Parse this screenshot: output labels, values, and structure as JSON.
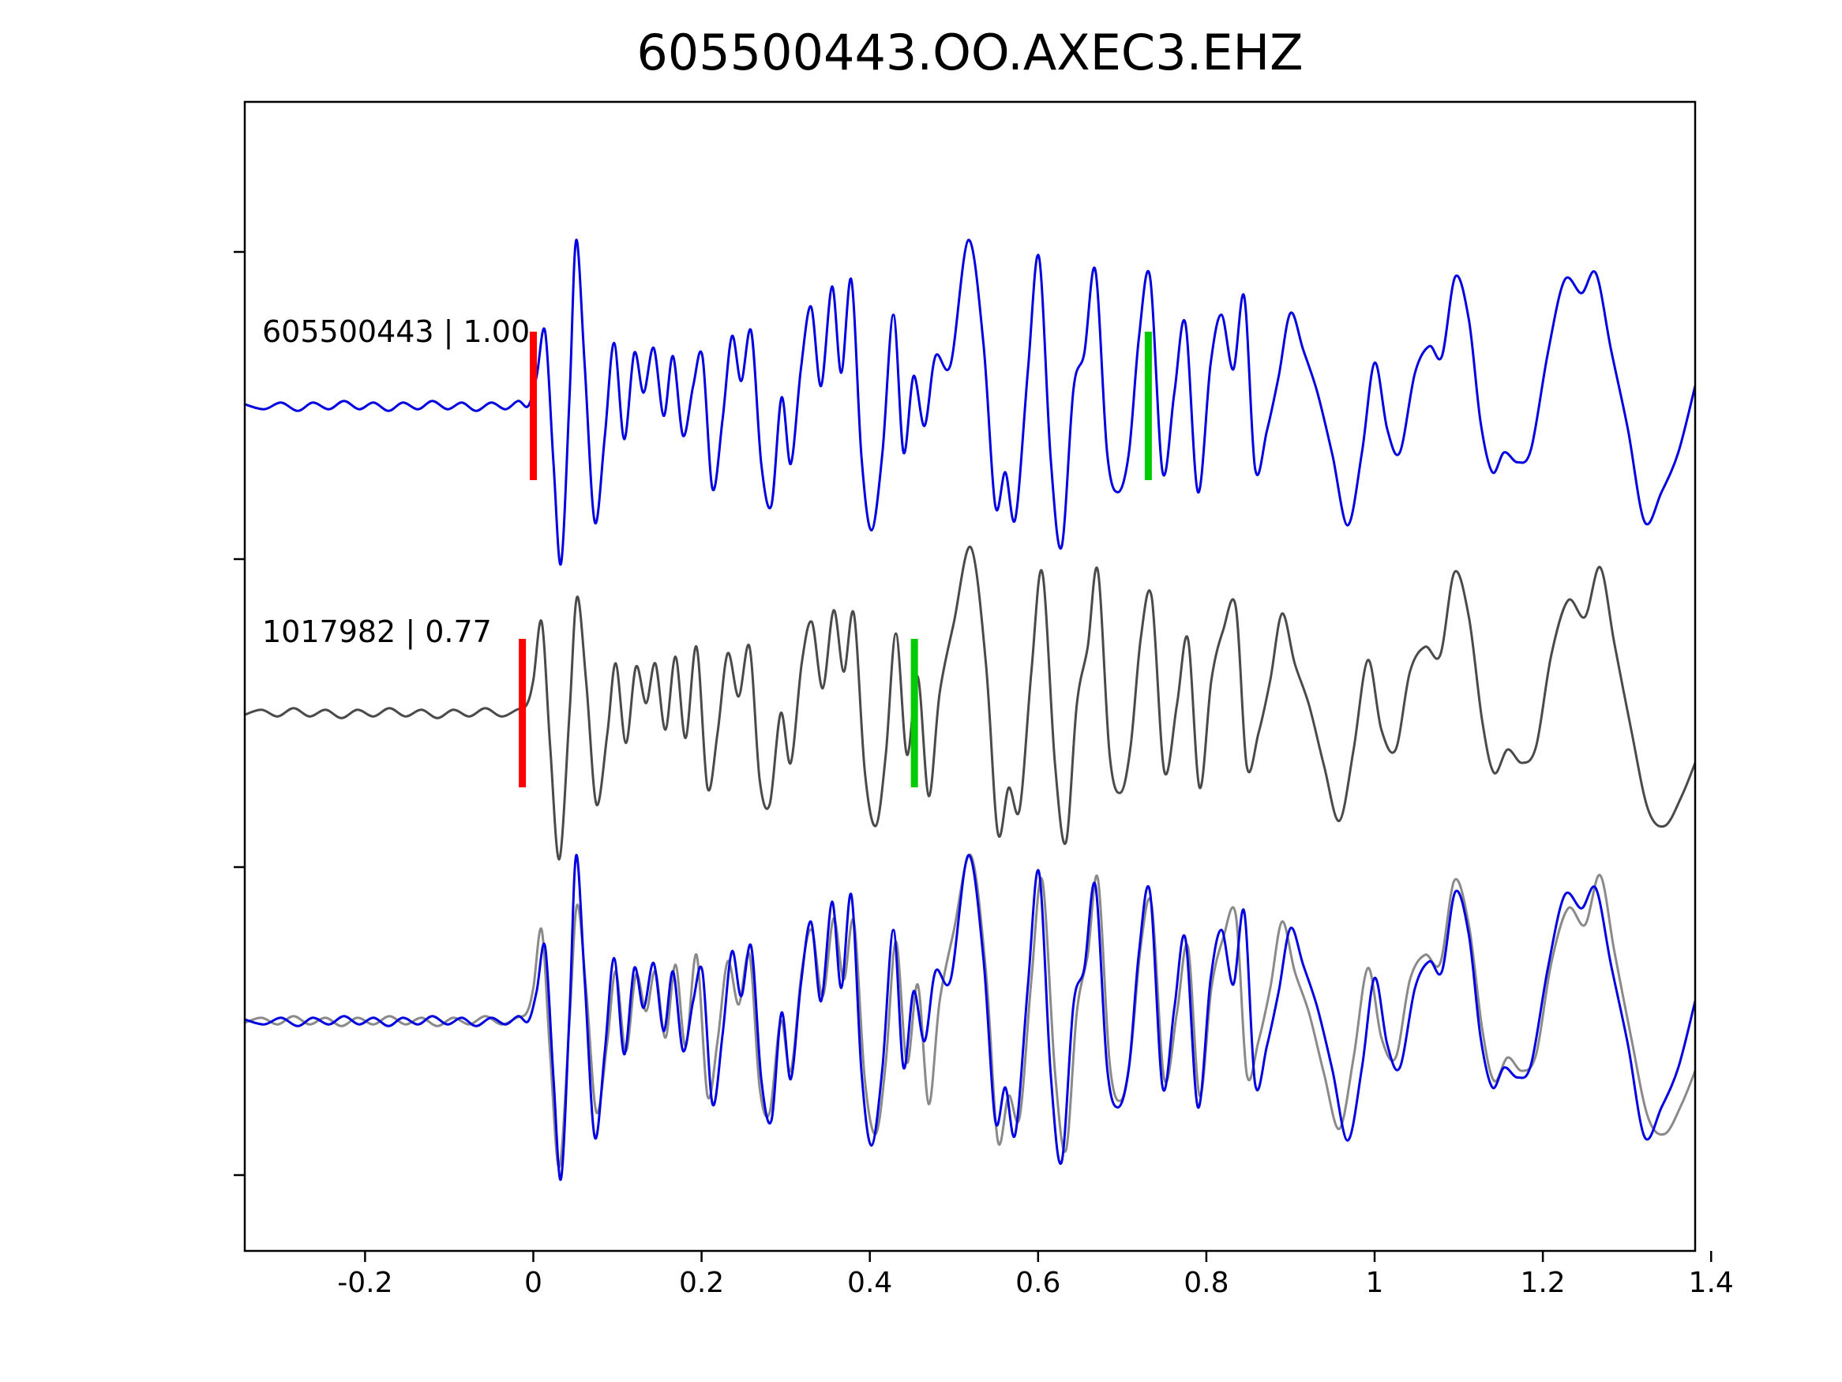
{
  "title": "605500443.OO.AXEC3.EHZ",
  "colors": {
    "template_trace": "#0000e0",
    "detection_trace": "#4a4a4a",
    "overlay_detection_trace": "#8a8a8a",
    "pick_red": "#ff0000",
    "pick_green": "#00cc00",
    "axis": "#000000",
    "text": "#000000"
  },
  "chart_data": {
    "type": "line",
    "title": "605500443.OO.AXEC3.EHZ",
    "xlabel": "",
    "ylabel": "",
    "grid": false,
    "legend": false,
    "xlim": [
      -0.343,
      1.381
    ],
    "x_ticks": [
      -0.2,
      0,
      0.2,
      0.4,
      0.6,
      0.8,
      1,
      1.2,
      1.4
    ],
    "x_tick_labels": [
      "-0.2",
      "0",
      "0.2",
      "0.4",
      "0.6",
      "0.8",
      "1",
      "1.2",
      "1.4"
    ],
    "rows": [
      {
        "label": "605500443 | 1.00",
        "traces": [
          {
            "series": "template",
            "color": "#0000e0"
          }
        ],
        "picks": [
          {
            "t": 0.0,
            "color": "#ff0000"
          },
          {
            "t": 0.731,
            "color": "#00cc00"
          }
        ]
      },
      {
        "label": "1017982 | 0.77",
        "traces": [
          {
            "series": "detection",
            "color": "#4a4a4a"
          }
        ],
        "picks": [
          {
            "t": -0.013,
            "color": "#ff0000"
          },
          {
            "t": 0.453,
            "color": "#00cc00"
          }
        ]
      },
      {
        "label": "",
        "traces": [
          {
            "series": "detection",
            "color": "#8a8a8a"
          },
          {
            "series": "template",
            "color": "#0000e0"
          }
        ],
        "picks": []
      }
    ],
    "series": {
      "template": [
        [
          -0.343,
          0.01
        ],
        [
          -0.32,
          -0.02
        ],
        [
          -0.3,
          0.02
        ],
        [
          -0.28,
          -0.03
        ],
        [
          -0.262,
          0.02
        ],
        [
          -0.243,
          -0.02
        ],
        [
          -0.225,
          0.03
        ],
        [
          -0.207,
          -0.02
        ],
        [
          -0.19,
          0.02
        ],
        [
          -0.172,
          -0.03
        ],
        [
          -0.155,
          0.02
        ],
        [
          -0.137,
          -0.02
        ],
        [
          -0.12,
          0.03
        ],
        [
          -0.102,
          -0.02
        ],
        [
          -0.085,
          0.02
        ],
        [
          -0.068,
          -0.03
        ],
        [
          -0.05,
          0.02
        ],
        [
          -0.033,
          -0.02
        ],
        [
          -0.018,
          0.03
        ],
        [
          -0.006,
          0.0
        ],
        [
          0.004,
          0.18
        ],
        [
          0.014,
          0.45
        ],
        [
          0.024,
          -0.35
        ],
        [
          0.033,
          -0.95
        ],
        [
          0.043,
          0.05
        ],
        [
          0.051,
          1.0
        ],
        [
          0.061,
          0.25
        ],
        [
          0.073,
          -0.7
        ],
        [
          0.085,
          -0.18
        ],
        [
          0.096,
          0.38
        ],
        [
          0.108,
          -0.2
        ],
        [
          0.12,
          0.32
        ],
        [
          0.131,
          0.08
        ],
        [
          0.143,
          0.35
        ],
        [
          0.155,
          -0.06
        ],
        [
          0.166,
          0.3
        ],
        [
          0.178,
          -0.18
        ],
        [
          0.19,
          0.12
        ],
        [
          0.201,
          0.3
        ],
        [
          0.213,
          -0.5
        ],
        [
          0.225,
          -0.08
        ],
        [
          0.236,
          0.42
        ],
        [
          0.247,
          0.15
        ],
        [
          0.259,
          0.45
        ],
        [
          0.271,
          -0.35
        ],
        [
          0.283,
          -0.6
        ],
        [
          0.295,
          0.05
        ],
        [
          0.306,
          -0.35
        ],
        [
          0.318,
          0.22
        ],
        [
          0.33,
          0.6
        ],
        [
          0.342,
          0.12
        ],
        [
          0.355,
          0.72
        ],
        [
          0.366,
          0.2
        ],
        [
          0.378,
          0.76
        ],
        [
          0.39,
          -0.3
        ],
        [
          0.402,
          -0.75
        ],
        [
          0.415,
          -0.28
        ],
        [
          0.428,
          0.55
        ],
        [
          0.44,
          -0.28
        ],
        [
          0.452,
          0.18
        ],
        [
          0.465,
          -0.12
        ],
        [
          0.478,
          0.3
        ],
        [
          0.496,
          0.25
        ],
        [
          0.517,
          1.0
        ],
        [
          0.535,
          0.38
        ],
        [
          0.549,
          -0.6
        ],
        [
          0.561,
          -0.4
        ],
        [
          0.573,
          -0.68
        ],
        [
          0.588,
          0.22
        ],
        [
          0.601,
          0.9
        ],
        [
          0.615,
          -0.32
        ],
        [
          0.628,
          -0.85
        ],
        [
          0.642,
          0.1
        ],
        [
          0.655,
          0.32
        ],
        [
          0.668,
          0.82
        ],
        [
          0.682,
          -0.28
        ],
        [
          0.695,
          -0.52
        ],
        [
          0.708,
          -0.28
        ],
        [
          0.72,
          0.42
        ],
        [
          0.733,
          0.78
        ],
        [
          0.748,
          -0.4
        ],
        [
          0.762,
          0.08
        ],
        [
          0.775,
          0.5
        ],
        [
          0.79,
          -0.52
        ],
        [
          0.805,
          0.25
        ],
        [
          0.818,
          0.55
        ],
        [
          0.832,
          0.22
        ],
        [
          0.845,
          0.66
        ],
        [
          0.858,
          -0.38
        ],
        [
          0.872,
          -0.15
        ],
        [
          0.886,
          0.18
        ],
        [
          0.9,
          0.56
        ],
        [
          0.915,
          0.34
        ],
        [
          0.932,
          0.08
        ],
        [
          0.95,
          -0.3
        ],
        [
          0.968,
          -0.72
        ],
        [
          0.985,
          -0.28
        ],
        [
          1.0,
          0.26
        ],
        [
          1.015,
          -0.14
        ],
        [
          1.03,
          -0.28
        ],
        [
          1.048,
          0.2
        ],
        [
          1.065,
          0.36
        ],
        [
          1.08,
          0.3
        ],
        [
          1.096,
          0.78
        ],
        [
          1.112,
          0.52
        ],
        [
          1.126,
          -0.1
        ],
        [
          1.14,
          -0.4
        ],
        [
          1.154,
          -0.28
        ],
        [
          1.17,
          -0.34
        ],
        [
          1.186,
          -0.26
        ],
        [
          1.206,
          0.32
        ],
        [
          1.226,
          0.76
        ],
        [
          1.246,
          0.68
        ],
        [
          1.263,
          0.8
        ],
        [
          1.281,
          0.34
        ],
        [
          1.301,
          -0.14
        ],
        [
          1.321,
          -0.7
        ],
        [
          1.341,
          -0.52
        ],
        [
          1.361,
          -0.28
        ],
        [
          1.381,
          0.12
        ]
      ],
      "detection": [
        [
          -0.343,
          -0.01
        ],
        [
          -0.323,
          0.02
        ],
        [
          -0.304,
          -0.02
        ],
        [
          -0.285,
          0.03
        ],
        [
          -0.266,
          -0.02
        ],
        [
          -0.247,
          0.02
        ],
        [
          -0.228,
          -0.03
        ],
        [
          -0.209,
          0.02
        ],
        [
          -0.19,
          -0.02
        ],
        [
          -0.171,
          0.03
        ],
        [
          -0.152,
          -0.02
        ],
        [
          -0.133,
          0.02
        ],
        [
          -0.114,
          -0.03
        ],
        [
          -0.095,
          0.02
        ],
        [
          -0.076,
          -0.02
        ],
        [
          -0.057,
          0.03
        ],
        [
          -0.038,
          -0.02
        ],
        [
          -0.02,
          0.02
        ],
        [
          -0.008,
          0.05
        ],
        [
          0.0,
          0.2
        ],
        [
          0.01,
          0.55
        ],
        [
          0.02,
          -0.2
        ],
        [
          0.031,
          -0.88
        ],
        [
          0.043,
          0.0
        ],
        [
          0.052,
          0.7
        ],
        [
          0.063,
          0.18
        ],
        [
          0.075,
          -0.55
        ],
        [
          0.088,
          -0.12
        ],
        [
          0.098,
          0.3
        ],
        [
          0.11,
          -0.18
        ],
        [
          0.122,
          0.28
        ],
        [
          0.134,
          0.06
        ],
        [
          0.145,
          0.3
        ],
        [
          0.157,
          -0.1
        ],
        [
          0.169,
          0.34
        ],
        [
          0.181,
          -0.15
        ],
        [
          0.194,
          0.4
        ],
        [
          0.207,
          -0.45
        ],
        [
          0.219,
          -0.12
        ],
        [
          0.231,
          0.36
        ],
        [
          0.244,
          0.1
        ],
        [
          0.257,
          0.4
        ],
        [
          0.269,
          -0.4
        ],
        [
          0.281,
          -0.55
        ],
        [
          0.294,
          0.0
        ],
        [
          0.306,
          -0.3
        ],
        [
          0.319,
          0.3
        ],
        [
          0.331,
          0.55
        ],
        [
          0.344,
          0.15
        ],
        [
          0.357,
          0.62
        ],
        [
          0.369,
          0.25
        ],
        [
          0.381,
          0.6
        ],
        [
          0.394,
          -0.35
        ],
        [
          0.407,
          -0.68
        ],
        [
          0.419,
          -0.25
        ],
        [
          0.431,
          0.48
        ],
        [
          0.444,
          -0.25
        ],
        [
          0.457,
          0.22
        ],
        [
          0.47,
          -0.5
        ],
        [
          0.483,
          0.12
        ],
        [
          0.5,
          0.55
        ],
        [
          0.52,
          1.0
        ],
        [
          0.538,
          0.3
        ],
        [
          0.552,
          -0.72
        ],
        [
          0.565,
          -0.45
        ],
        [
          0.578,
          -0.58
        ],
        [
          0.592,
          0.25
        ],
        [
          0.605,
          0.85
        ],
        [
          0.62,
          -0.3
        ],
        [
          0.633,
          -0.78
        ],
        [
          0.646,
          0.05
        ],
        [
          0.659,
          0.4
        ],
        [
          0.671,
          0.86
        ],
        [
          0.685,
          -0.25
        ],
        [
          0.698,
          -0.48
        ],
        [
          0.71,
          -0.2
        ],
        [
          0.722,
          0.45
        ],
        [
          0.735,
          0.7
        ],
        [
          0.75,
          -0.35
        ],
        [
          0.765,
          0.05
        ],
        [
          0.778,
          0.45
        ],
        [
          0.792,
          -0.45
        ],
        [
          0.806,
          0.2
        ],
        [
          0.82,
          0.5
        ],
        [
          0.835,
          0.64
        ],
        [
          0.848,
          -0.32
        ],
        [
          0.862,
          -0.12
        ],
        [
          0.876,
          0.2
        ],
        [
          0.89,
          0.6
        ],
        [
          0.905,
          0.3
        ],
        [
          0.922,
          0.05
        ],
        [
          0.94,
          -0.32
        ],
        [
          0.958,
          -0.65
        ],
        [
          0.975,
          -0.22
        ],
        [
          0.992,
          0.32
        ],
        [
          1.008,
          -0.1
        ],
        [
          1.025,
          -0.22
        ],
        [
          1.042,
          0.25
        ],
        [
          1.06,
          0.4
        ],
        [
          1.078,
          0.35
        ],
        [
          1.095,
          0.85
        ],
        [
          1.112,
          0.58
        ],
        [
          1.128,
          -0.05
        ],
        [
          1.142,
          -0.36
        ],
        [
          1.158,
          -0.22
        ],
        [
          1.175,
          -0.3
        ],
        [
          1.192,
          -0.2
        ],
        [
          1.21,
          0.35
        ],
        [
          1.23,
          0.68
        ],
        [
          1.25,
          0.58
        ],
        [
          1.268,
          0.88
        ],
        [
          1.285,
          0.42
        ],
        [
          1.305,
          -0.1
        ],
        [
          1.325,
          -0.58
        ],
        [
          1.345,
          -0.68
        ],
        [
          1.365,
          -0.5
        ],
        [
          1.381,
          -0.3
        ]
      ]
    }
  }
}
